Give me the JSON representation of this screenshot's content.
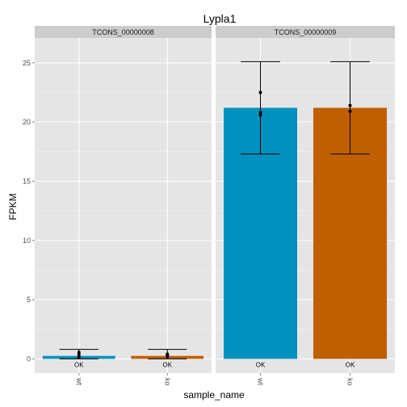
{
  "chart_data": {
    "type": "bar",
    "title": "Lypla1",
    "xlabel": "sample_name",
    "ylabel": "FPKM",
    "ylim": [
      -1.2,
      27.1
    ],
    "yticks": [
      0,
      5,
      10,
      15,
      20,
      25
    ],
    "categories": [
      "wt",
      "ko"
    ],
    "grid": true,
    "colors": {
      "wt": "#0091bf",
      "ko": "#bf5f00",
      "panel_bg": "#e5e5e5",
      "strip_bg": "#cccccc",
      "grid": "#ffffff"
    },
    "facets": [
      {
        "label": "TCONS_00000008",
        "bars": [
          {
            "sample": "wt",
            "value": 0.25,
            "ci": [
              0.0,
              0.8
            ],
            "points": [
              0.15,
              0.35,
              0.55
            ],
            "status": "OK"
          },
          {
            "sample": "ko",
            "value": 0.25,
            "ci": [
              0.0,
              0.8
            ],
            "points": [
              0.2,
              0.3,
              0.4
            ],
            "status": "OK"
          }
        ]
      },
      {
        "label": "TCONS_00000009",
        "bars": [
          {
            "sample": "wt",
            "value": 21.2,
            "ci": [
              17.3,
              25.1
            ],
            "points": [
              20.6,
              20.8,
              22.5
            ],
            "status": "OK"
          },
          {
            "sample": "ko",
            "value": 21.2,
            "ci": [
              17.3,
              25.1
            ],
            "points": [
              20.9,
              21.4
            ],
            "status": "OK"
          }
        ]
      }
    ]
  }
}
